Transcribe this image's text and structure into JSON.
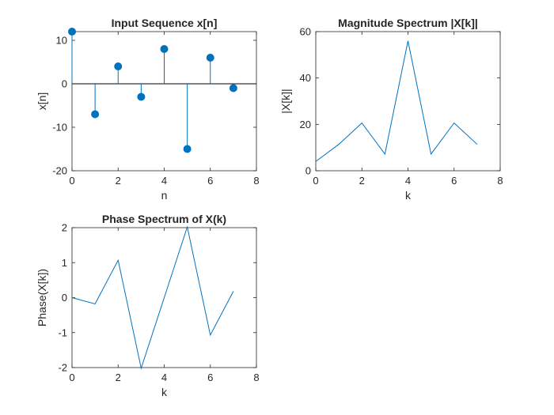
{
  "chart_data": [
    {
      "type": "stem",
      "title": "Input Sequence x[n]",
      "xlabel": "n",
      "ylabel": "x[n]",
      "xlim": [
        0,
        8
      ],
      "ylim": [
        -20,
        12
      ],
      "xticks": [
        0,
        2,
        4,
        6,
        8
      ],
      "yticks": [
        -20,
        -10,
        0,
        10
      ],
      "x": [
        0,
        1,
        2,
        3,
        4,
        5,
        6,
        7
      ],
      "values": [
        12,
        -7,
        4,
        -3,
        8,
        -15,
        6,
        -1
      ],
      "grid": false,
      "color": "#0072BD"
    },
    {
      "type": "line",
      "title": "Magnitude Spectrum |X[k]|",
      "xlabel": "k",
      "ylabel": "|X[k]|",
      "xlim": [
        0,
        8
      ],
      "ylim": [
        0,
        60
      ],
      "xticks": [
        0,
        2,
        4,
        6,
        8
      ],
      "yticks": [
        0,
        20,
        40,
        60
      ],
      "x": [
        0,
        1,
        2,
        3,
        4,
        5,
        6,
        7
      ],
      "values": [
        4,
        11.4,
        20.6,
        7.2,
        56,
        7.2,
        20.6,
        11.4
      ],
      "grid": false,
      "color": "#0072BD"
    },
    {
      "type": "line",
      "title": "Phase Spectrum of X(k)",
      "xlabel": "k",
      "ylabel": "Phase(X[k])",
      "xlim": [
        0,
        8
      ],
      "ylim": [
        -2,
        2
      ],
      "xticks": [
        0,
        2,
        4,
        6,
        8
      ],
      "yticks": [
        -2,
        -1,
        0,
        1,
        2
      ],
      "x": [
        0,
        1,
        2,
        3,
        4,
        5,
        6,
        7
      ],
      "values": [
        0,
        -0.18,
        1.07,
        -2.02,
        0,
        2.02,
        -1.07,
        0.18
      ],
      "grid": false,
      "color": "#0072BD"
    }
  ]
}
